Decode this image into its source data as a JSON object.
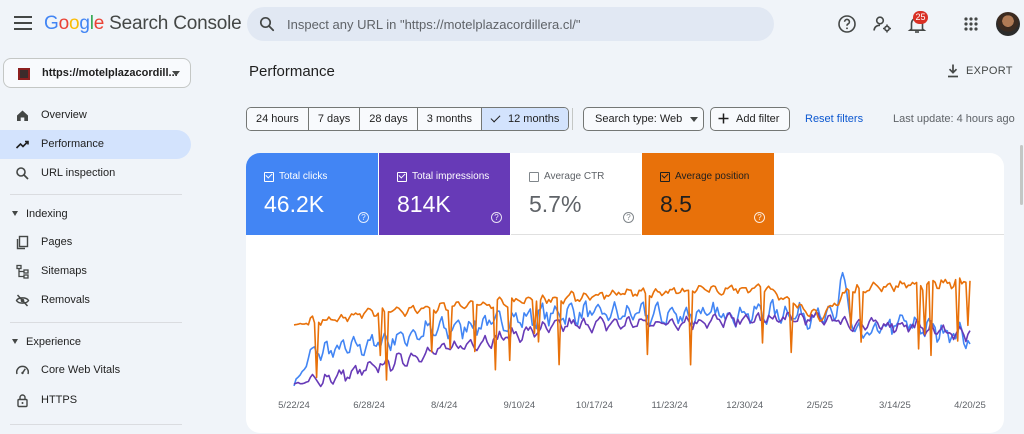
{
  "app": {
    "logo_letters": [
      "G",
      "o",
      "o",
      "g",
      "l",
      "e"
    ],
    "product": "Search Console",
    "search_placeholder": "Inspect any URL in \"https://motelplazacordillera.cl/\"",
    "notification_count": "25"
  },
  "sidebar": {
    "property_label": "https://motelplazacordill...",
    "items_top": [
      {
        "label": "Overview",
        "icon": "home-icon",
        "active": false
      },
      {
        "label": "Performance",
        "icon": "trending-up-icon",
        "active": true
      },
      {
        "label": "URL inspection",
        "icon": "search-icon",
        "active": false
      }
    ],
    "sections": [
      {
        "title": "Indexing",
        "items": [
          {
            "label": "Pages",
            "icon": "pages-icon"
          },
          {
            "label": "Sitemaps",
            "icon": "sitemap-icon"
          },
          {
            "label": "Removals",
            "icon": "visibility-off-icon"
          }
        ]
      },
      {
        "title": "Experience",
        "items": [
          {
            "label": "Core Web Vitals",
            "icon": "speedometer-icon"
          },
          {
            "label": "HTTPS",
            "icon": "lock-icon"
          }
        ]
      }
    ]
  },
  "main": {
    "title": "Performance",
    "export_label": "EXPORT",
    "date_ranges": [
      {
        "label": "24 hours",
        "selected": false
      },
      {
        "label": "7 days",
        "selected": false
      },
      {
        "label": "28 days",
        "selected": false
      },
      {
        "label": "3 months",
        "selected": false
      },
      {
        "label": "12 months",
        "selected": true
      }
    ],
    "search_type_label": "Search type: Web",
    "add_filter_label": "Add filter",
    "reset_filters_label": "Reset filters",
    "last_update": "Last update: 4 hours ago",
    "metrics": [
      {
        "name": "Total clicks",
        "value": "46.2K",
        "checked": true,
        "color": "#4285f4"
      },
      {
        "name": "Total impressions",
        "value": "814K",
        "checked": true,
        "color": "#673ab7"
      },
      {
        "name": "Average CTR",
        "value": "5.7%",
        "checked": false,
        "color": "#ffffff"
      },
      {
        "name": "Average position",
        "value": "8.5",
        "checked": true,
        "color": "#e8710a"
      }
    ]
  },
  "chart_data": {
    "type": "line",
    "title": "",
    "xlabel": "",
    "ylabel": "",
    "grid": false,
    "legend": "none",
    "x_tick_labels": [
      "5/22/24",
      "6/28/24",
      "8/4/24",
      "9/10/24",
      "10/17/24",
      "11/23/24",
      "12/30/24",
      "2/5/25",
      "3/14/25",
      "4/20/25"
    ],
    "series": [
      {
        "name": "Total clicks",
        "color": "#4285f4"
      },
      {
        "name": "Total impressions",
        "color": "#673ab7"
      },
      {
        "name": "Average position",
        "color": "#e8710a"
      }
    ],
    "series_trend": {
      "Total clicks": [
        [
          0,
          0.02
        ],
        [
          0.03,
          0.28
        ],
        [
          0.09,
          0.32
        ],
        [
          0.2,
          0.45
        ],
        [
          0.4,
          0.6
        ],
        [
          0.55,
          0.58
        ],
        [
          0.72,
          0.6
        ],
        [
          0.8,
          0.55
        ],
        [
          0.81,
          0.92
        ],
        [
          0.83,
          0.4
        ],
        [
          0.9,
          0.52
        ],
        [
          1,
          0.4
        ]
      ],
      "Total impressions": [
        [
          0,
          0.02
        ],
        [
          0.08,
          0.1
        ],
        [
          0.2,
          0.28
        ],
        [
          0.4,
          0.5
        ],
        [
          0.55,
          0.52
        ],
        [
          0.72,
          0.55
        ],
        [
          0.8,
          0.55
        ],
        [
          0.83,
          0.5
        ],
        [
          0.9,
          0.5
        ],
        [
          1,
          0.42
        ]
      ],
      "Average position": [
        [
          0,
          0.5
        ],
        [
          0.12,
          0.6
        ],
        [
          0.3,
          0.68
        ],
        [
          0.5,
          0.76
        ],
        [
          0.7,
          0.8
        ],
        [
          0.78,
          0.55
        ],
        [
          0.82,
          0.78
        ],
        [
          0.9,
          0.82
        ],
        [
          1,
          0.85
        ]
      ]
    }
  }
}
